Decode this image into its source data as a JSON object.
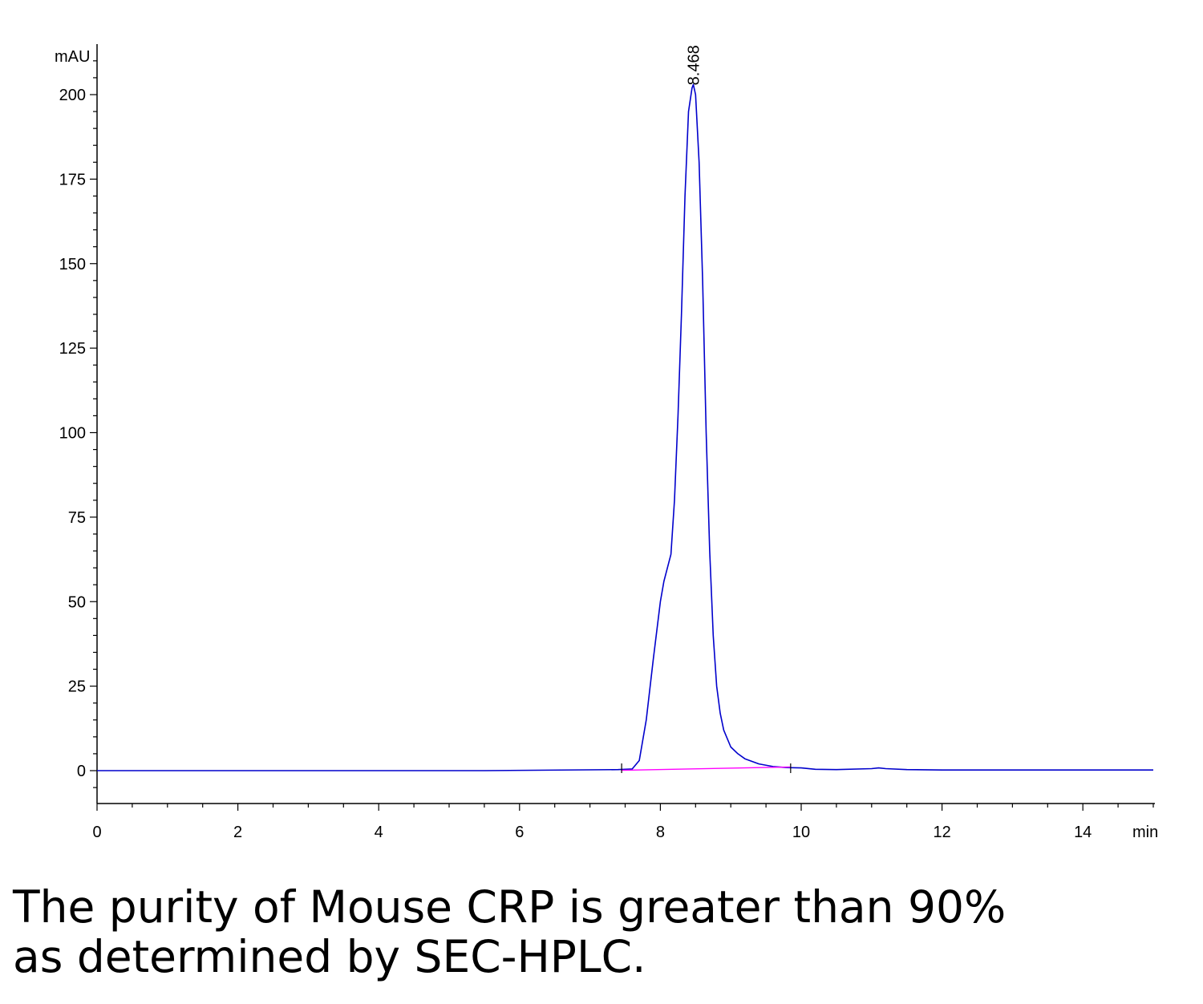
{
  "chart_data": {
    "type": "line",
    "title": "",
    "xlabel": "min",
    "ylabel": "mAU",
    "xlim": [
      0,
      15
    ],
    "ylim": [
      -10,
      210
    ],
    "x_ticks": [
      0,
      2,
      4,
      6,
      8,
      10,
      12,
      14
    ],
    "y_ticks": [
      0,
      25,
      50,
      75,
      100,
      125,
      150,
      175,
      200
    ],
    "grid": false,
    "series": [
      {
        "color": "#0000cc",
        "x": [
          0,
          5.5,
          7.4,
          7.6,
          7.7,
          7.8,
          7.9,
          8.0,
          8.05,
          8.1,
          8.15,
          8.2,
          8.25,
          8.3,
          8.35,
          8.4,
          8.45,
          8.468,
          8.5,
          8.55,
          8.6,
          8.65,
          8.7,
          8.75,
          8.8,
          8.85,
          8.9,
          9.0,
          9.1,
          9.2,
          9.4,
          9.6,
          9.8,
          10.0,
          10.2,
          10.5,
          11.0,
          11.1,
          11.2,
          11.5,
          12.0,
          13.0,
          14.0,
          15.0
        ],
        "y": [
          0,
          0,
          0.3,
          0.5,
          3,
          15,
          33,
          50,
          56,
          60,
          64,
          80,
          105,
          135,
          170,
          195,
          202,
          203,
          200,
          180,
          145,
          100,
          65,
          40,
          25,
          17,
          12,
          7,
          5,
          3.5,
          2,
          1.2,
          0.9,
          0.8,
          0.4,
          0.3,
          0.6,
          0.8,
          0.6,
          0.3,
          0.2,
          0.2,
          0.2,
          0.2
        ]
      },
      {
        "color": "#ff00ff",
        "x": [
          7.45,
          9.85
        ],
        "y": [
          0.1,
          1.1
        ]
      }
    ],
    "annotations": [
      {
        "text": "8.468",
        "x": 8.468,
        "y": 203
      }
    ],
    "baseline_markers": [
      7.45,
      9.85
    ]
  },
  "caption": {
    "line1": "The purity of Mouse CRP is greater than 90%",
    "line2": "as determined by SEC-HPLC."
  }
}
